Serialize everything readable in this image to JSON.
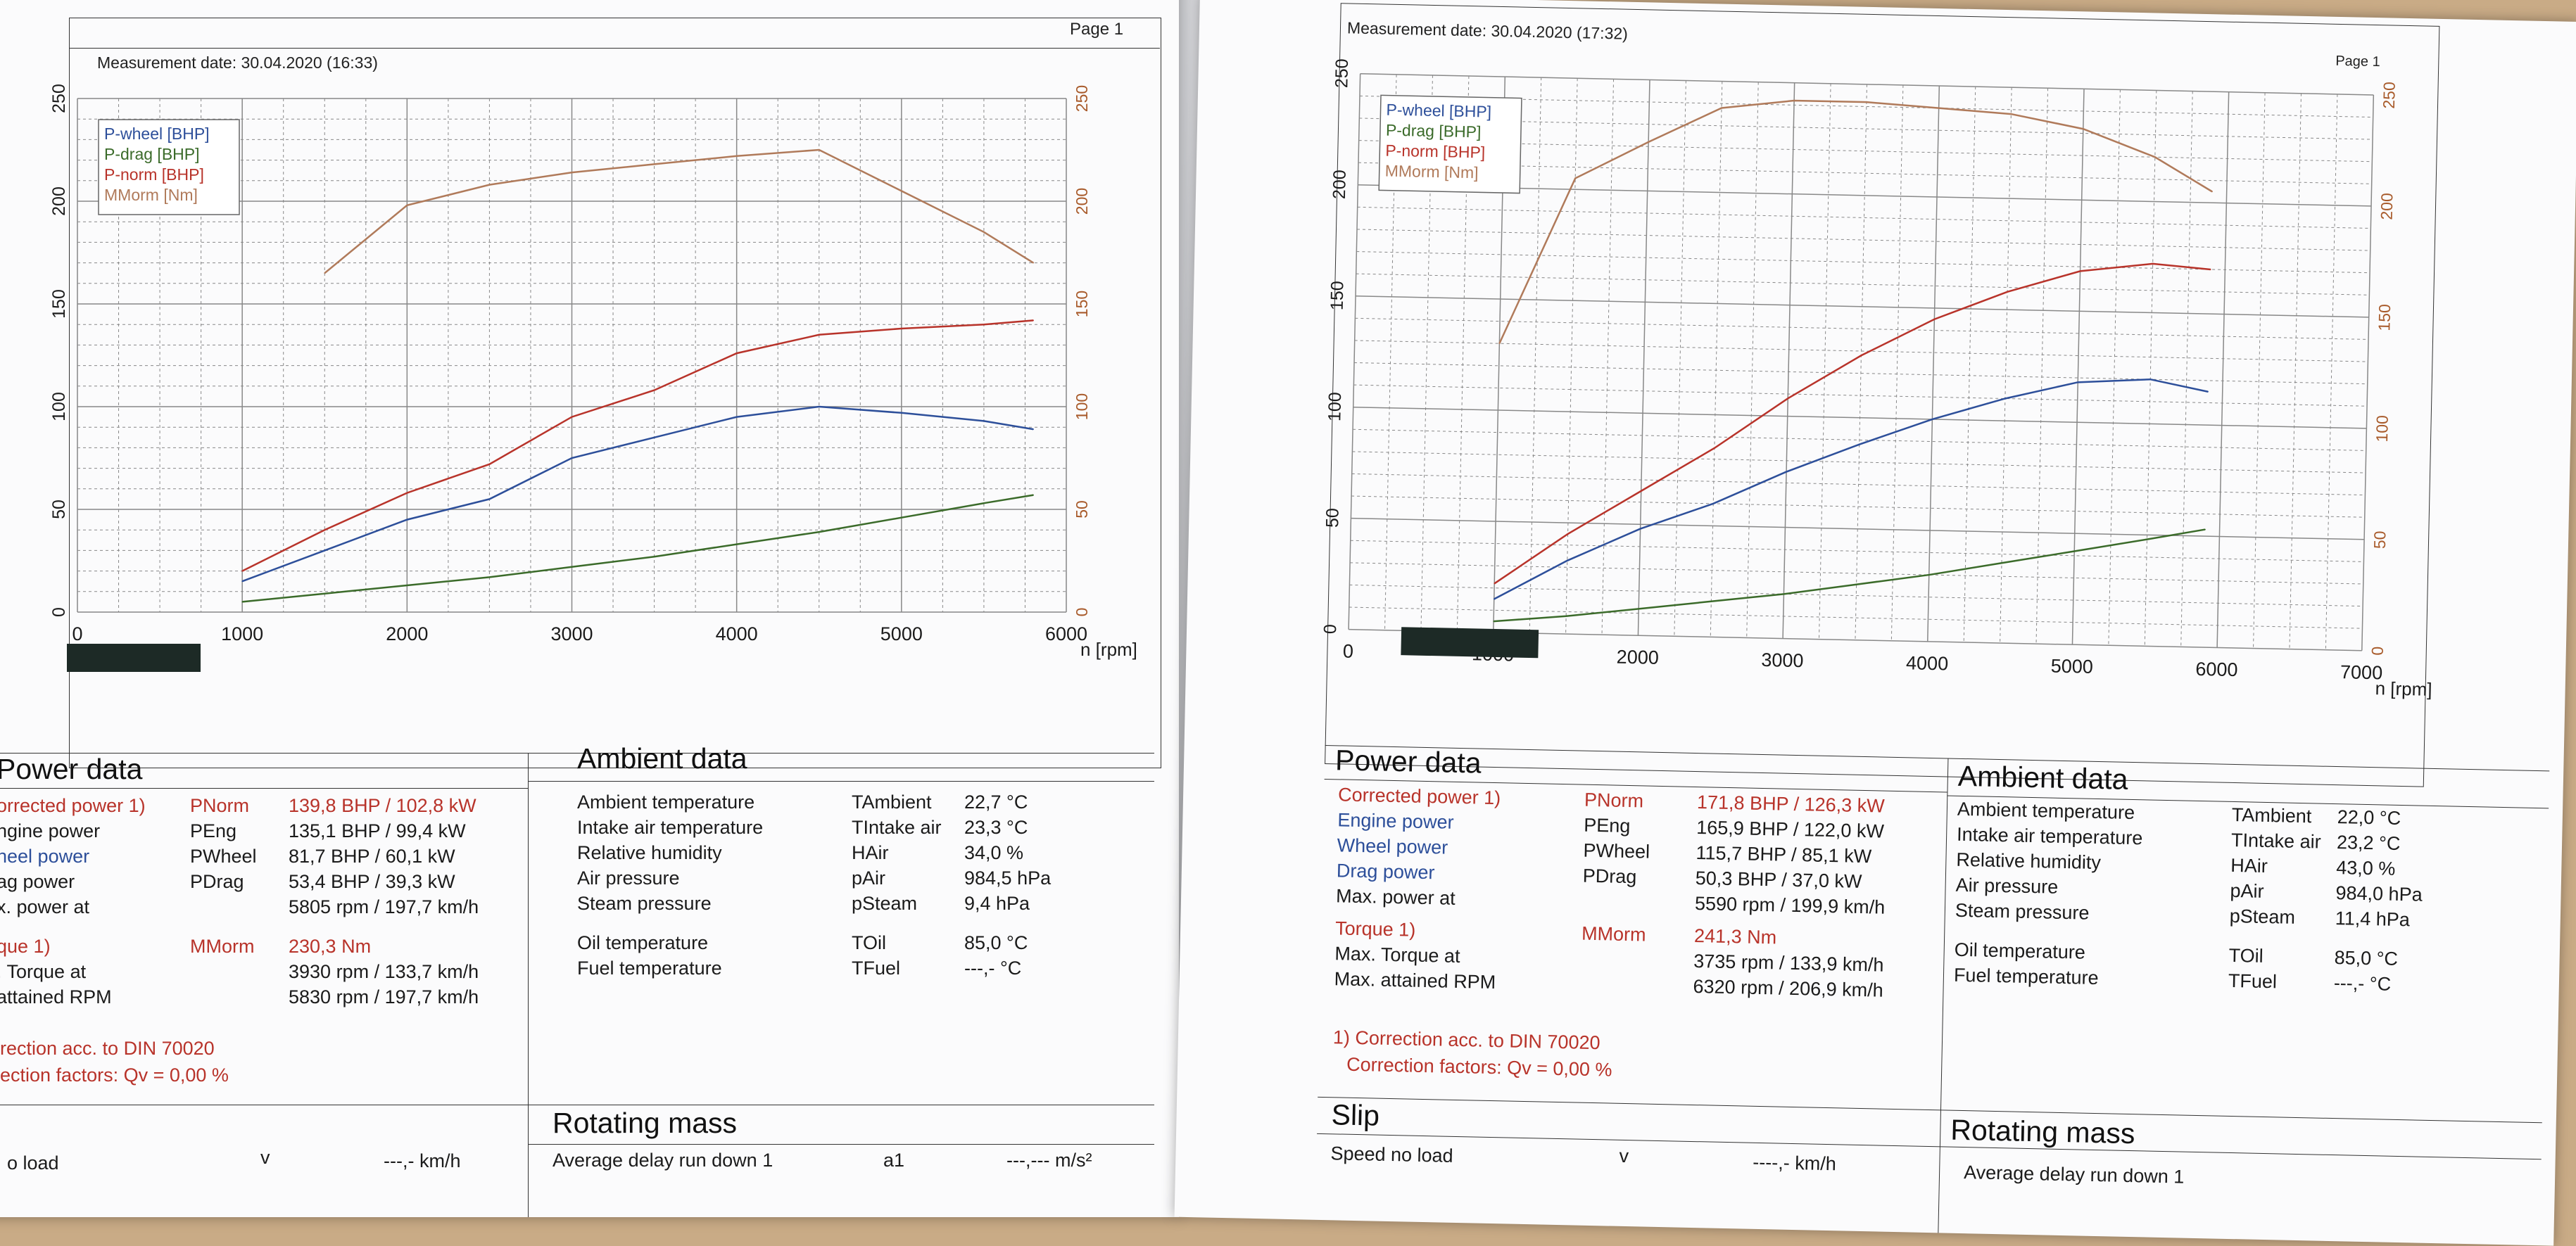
{
  "left_sheet": {
    "measurement_date": "Measurement date: 30.04.2020 (16:33)",
    "page": "Page 1",
    "legend": [
      "P-wheel [BHP]",
      "P-drag [BHP]",
      "P-norm [BHP]",
      "MMorm [Nm]"
    ],
    "x_ticks": [
      "0",
      "1000",
      "2000",
      "3000",
      "4000",
      "5000",
      "6000"
    ],
    "x_unit": "n [rpm]",
    "y_left_ticks": [
      "0",
      "50",
      "100",
      "150",
      "200",
      "250"
    ],
    "y_right_ticks": [
      "0",
      "50",
      "100",
      "150",
      "200",
      "250"
    ],
    "power_title": "Power data",
    "ambient_title": "Ambient data",
    "rotating_title": "Rotating mass",
    "power_rows": [
      {
        "label": "orrected power 1)",
        "sym": "PNorm",
        "value": "139,8  BHP  /  102,8  kW"
      },
      {
        "label": "ngine power",
        "sym": "PEng",
        "value": "135,1  BHP  /   99,4  kW"
      },
      {
        "label": "heel power",
        "sym": "PWheel",
        "value": "81,7  BHP  /   60,1  kW"
      },
      {
        "label": "ag power",
        "sym": "PDrag",
        "value": "53,4  BHP  /   39,3  kW"
      },
      {
        "label": "x. power at",
        "sym": "",
        "value": "5805  rpm  /  197,7  km/h"
      },
      {
        "label": "que 1)",
        "sym": "MMorm",
        "value": "230,3  Nm"
      },
      {
        "label": ". Torque at",
        "sym": "",
        "value": "3930  rpm  /  133,7  km/h"
      },
      {
        "label": "attained RPM",
        "sym": "",
        "value": "5830  rpm  /  197,7  km/h"
      }
    ],
    "correction_1": "rection acc. to DIN 70020",
    "correction_2": "ection factors: Qv =   0,00 %",
    "ambient_rows": [
      {
        "label": "Ambient temperature",
        "sym": "TAmbient",
        "value": "22,7",
        "unit": "°C"
      },
      {
        "label": "Intake air temperature",
        "sym": "TIntake air",
        "value": "23,3",
        "unit": "°C"
      },
      {
        "label": "Relative humidity",
        "sym": "HAir",
        "value": "34,0",
        "unit": "%"
      },
      {
        "label": "Air pressure",
        "sym": "pAir",
        "value": "984,5",
        "unit": "hPa"
      },
      {
        "label": "Steam pressure",
        "sym": "pSteam",
        "value": "9,4",
        "unit": "hPa"
      },
      {
        "label": "Oil temperature",
        "sym": "TOil",
        "value": "85,0",
        "unit": "°C"
      },
      {
        "label": "Fuel temperature",
        "sym": "TFuel",
        "value": "---,-",
        "unit": "°C"
      }
    ],
    "bottom_left": "o load",
    "bottom_v": "v",
    "bottom_kmh": "---,-  km/h",
    "bottom_delay": "Average delay run down 1",
    "bottom_a1": "a1",
    "bottom_ms2": "---,---  m/s²"
  },
  "right_sheet": {
    "measurement_date": "Measurement date: 30.04.2020 (17:32)",
    "page": "Page 1",
    "legend": [
      "P-wheel [BHP]",
      "P-drag [BHP]",
      "P-norm [BHP]",
      "MMorm [Nm]"
    ],
    "x_ticks": [
      "0",
      "1000",
      "2000",
      "3000",
      "4000",
      "5000",
      "6000",
      "7000"
    ],
    "x_unit": "n [rpm]",
    "y_left_ticks": [
      "0",
      "50",
      "100",
      "150",
      "200",
      "250"
    ],
    "y_right_ticks": [
      "0",
      "50",
      "100",
      "150",
      "200",
      "250"
    ],
    "power_title": "Power data",
    "ambient_title": "Ambient data",
    "slip_title": "Slip",
    "rotating_title": "Rotating mass",
    "power_rows": [
      {
        "label": "Corrected power 1)",
        "sym": "PNorm",
        "value": "171,8  BHP  /  126,3  kW"
      },
      {
        "label": "Engine power",
        "sym": "PEng",
        "value": "165,9  BHP  /  122,0  kW"
      },
      {
        "label": "Wheel power",
        "sym": "PWheel",
        "value": "115,7  BHP  /   85,1  kW"
      },
      {
        "label": "Drag power",
        "sym": "PDrag",
        "value": "50,3  BHP  /   37,0  kW"
      },
      {
        "label": "Max. power at",
        "sym": "",
        "value": "5590  rpm  /  199,9  km/h"
      },
      {
        "label": "Torque 1)",
        "sym": "MMorm",
        "value": "241,3  Nm"
      },
      {
        "label": "Max. Torque at",
        "sym": "",
        "value": "3735  rpm  /  133,9  km/h"
      },
      {
        "label": "Max. attained RPM",
        "sym": "",
        "value": "6320  rpm  /  206,9  km/h"
      }
    ],
    "correction_1": "1) Correction acc. to DIN 70020",
    "correction_2": "Correction factors: Qv =   0,00 %",
    "ambient_rows": [
      {
        "label": "Ambient temperature",
        "sym": "TAmbient",
        "value": "22,0",
        "unit": "°C"
      },
      {
        "label": "Intake air temperature",
        "sym": "TIntake air",
        "value": "23,2",
        "unit": "°C"
      },
      {
        "label": "Relative humidity",
        "sym": "HAir",
        "value": "43,0",
        "unit": "%"
      },
      {
        "label": "Air pressure",
        "sym": "pAir",
        "value": "984,0",
        "unit": "hPa"
      },
      {
        "label": "Steam pressure",
        "sym": "pSteam",
        "value": "11,4",
        "unit": "hPa"
      },
      {
        "label": "Oil temperature",
        "sym": "TOil",
        "value": "85,0",
        "unit": "°C"
      },
      {
        "label": "Fuel temperature",
        "sym": "TFuel",
        "value": "---,-",
        "unit": "°C"
      }
    ],
    "bottom_speed": "Speed no load",
    "bottom_v": "v",
    "bottom_kmh": "----,-  km/h",
    "bottom_delay": "Average delay run down 1"
  },
  "chart_data": [
    {
      "type": "line",
      "x": [
        1000,
        1500,
        2000,
        2500,
        3000,
        3500,
        4000,
        4500,
        5000,
        5500,
        5800
      ],
      "series": [
        {
          "name": "P-wheel [BHP]",
          "values": [
            15,
            30,
            45,
            55,
            75,
            85,
            95,
            100,
            97,
            93,
            89
          ],
          "color": "#2d4f9a"
        },
        {
          "name": "P-drag [BHP]",
          "values": [
            5,
            9,
            13,
            17,
            22,
            27,
            33,
            39,
            46,
            53,
            57
          ],
          "color": "#3b6b2a"
        },
        {
          "name": "P-norm [BHP]",
          "values": [
            20,
            40,
            58,
            72,
            95,
            108,
            126,
            135,
            138,
            140,
            142
          ],
          "color": "#b8332a"
        },
        {
          "name": "MMorm [Nm]",
          "values": [
            null,
            165,
            198,
            208,
            214,
            218,
            222,
            225,
            205,
            185,
            170
          ],
          "color": "#b07a5a"
        }
      ],
      "xlim": [
        0,
        6000
      ],
      "ylim": [
        0,
        250
      ],
      "xlabel": "n [rpm]"
    },
    {
      "type": "line",
      "x": [
        1000,
        1500,
        2000,
        2500,
        3000,
        3500,
        4000,
        4500,
        5000,
        5500,
        5900
      ],
      "series": [
        {
          "name": "P-wheel [BHP]",
          "values": [
            15,
            33,
            48,
            60,
            75,
            88,
            100,
            110,
            118,
            120,
            115
          ],
          "color": "#2d4f9a"
        },
        {
          "name": "P-drag [BHP]",
          "values": [
            5,
            8,
            12,
            16,
            20,
            25,
            30,
            36,
            42,
            48,
            53
          ],
          "color": "#3b6b2a"
        },
        {
          "name": "P-norm [BHP]",
          "values": [
            22,
            45,
            65,
            85,
            108,
            128,
            145,
            158,
            168,
            172,
            170
          ],
          "color": "#b8332a"
        },
        {
          "name": "MMorm [Nm]",
          "values": [
            130,
            205,
            222,
            238,
            242,
            242,
            240,
            238,
            232,
            220,
            205
          ],
          "color": "#b07a5a"
        }
      ],
      "xlim": [
        0,
        7000
      ],
      "ylim": [
        0,
        250
      ],
      "xlabel": "n [rpm]"
    }
  ]
}
